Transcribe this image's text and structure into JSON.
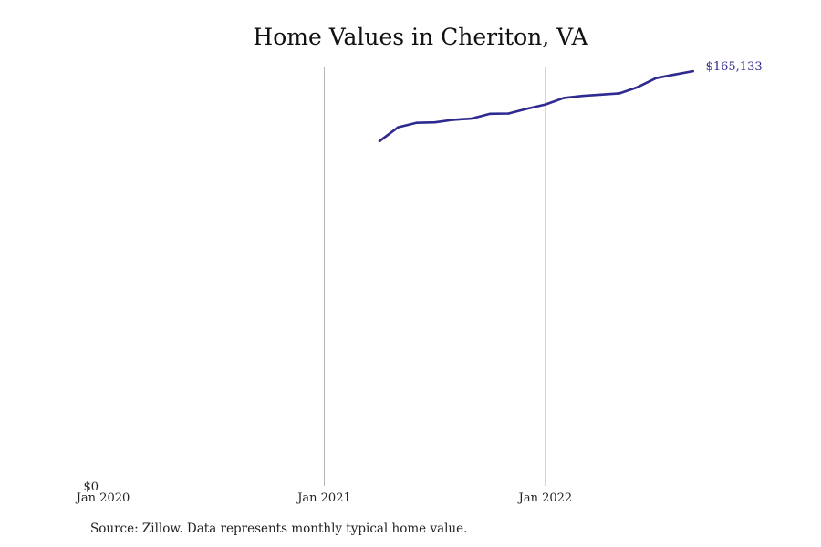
{
  "chart_data": {
    "type": "line",
    "title": "Home Values in Cheriton, VA",
    "xlabel": "",
    "ylabel": "",
    "x_ticks": [
      {
        "date": "2020-01",
        "label": "Jan 2020",
        "gridline": false
      },
      {
        "date": "2021-01",
        "label": "Jan 2021",
        "gridline": true
      },
      {
        "date": "2022-01",
        "label": "Jan 2022",
        "gridline": true
      }
    ],
    "y_ticks": [
      {
        "value": 0,
        "label": "$0"
      }
    ],
    "xlim": [
      "2020-01",
      "2022-11"
    ],
    "ylim": [
      0,
      167000
    ],
    "grid": "vertical",
    "series": [
      {
        "color": "#2e2a8f",
        "points": [
          {
            "x": "2021-04",
            "y": 137300
          },
          {
            "x": "2021-05",
            "y": 142800
          },
          {
            "x": "2021-06",
            "y": 144600
          },
          {
            "x": "2021-07",
            "y": 144800
          },
          {
            "x": "2021-08",
            "y": 145800
          },
          {
            "x": "2021-09",
            "y": 146300
          },
          {
            "x": "2021-10",
            "y": 148200
          },
          {
            "x": "2021-11",
            "y": 148300
          },
          {
            "x": "2021-12",
            "y": 150200
          },
          {
            "x": "2022-01",
            "y": 151900
          },
          {
            "x": "2022-02",
            "y": 154500
          },
          {
            "x": "2022-03",
            "y": 155300
          },
          {
            "x": "2022-04",
            "y": 155800
          },
          {
            "x": "2022-05",
            "y": 156300
          },
          {
            "x": "2022-06",
            "y": 158800
          },
          {
            "x": "2022-07",
            "y": 162400
          },
          {
            "x": "2022-08",
            "y": 163800
          },
          {
            "x": "2022-09",
            "y": 165133
          }
        ],
        "end_label": "$165,133"
      }
    ]
  },
  "source_note": "Source: Zillow. Data represents monthly typical home value."
}
